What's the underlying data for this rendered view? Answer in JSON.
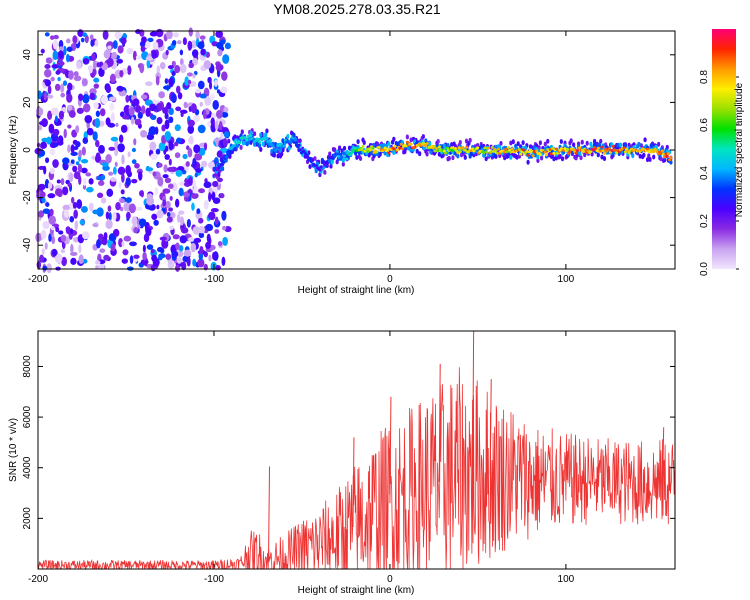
{
  "title": "YM08.2025.278.03.35.R21",
  "chart_data": [
    {
      "type": "heatmap",
      "name": "spectrogram",
      "xlabel": "Height of straight line (km)",
      "ylabel": "Frequency (Hz)",
      "xlim": [
        -200,
        162
      ],
      "ylim": [
        -50,
        50
      ],
      "xticks": [
        -200,
        -100,
        0,
        100
      ],
      "yticks": [
        40,
        20,
        0,
        -20,
        -40
      ],
      "colorbar": {
        "label": "Normalized spectral amplitude",
        "range": [
          0,
          1
        ],
        "ticks": [
          "0.0",
          "0.2",
          "0.4",
          "0.6",
          "0.8"
        ],
        "tick_values": [
          0.0,
          0.2,
          0.4,
          0.6,
          0.8
        ],
        "colors": [
          "#f2e6ff",
          "#c9a3f0",
          "#8a2be2",
          "#4b00ff",
          "#0033ff",
          "#00b7ff",
          "#00e5c0",
          "#00e000",
          "#9be000",
          "#ffee00",
          "#ff9900",
          "#ff2200",
          "#ff0077"
        ]
      },
      "noise_region_x": [
        -200,
        -92
      ],
      "trace": {
        "x": [
          -100,
          -95,
          -90,
          -85,
          -80,
          -75,
          -70,
          -65,
          -60,
          -55,
          -50,
          -45,
          -40,
          -35,
          -30,
          -25,
          -20,
          -10,
          0,
          10,
          20,
          30,
          40,
          60,
          80,
          100,
          120,
          140,
          150,
          160
        ],
        "y": [
          -10,
          -6,
          2,
          4,
          5,
          4,
          5,
          0,
          3,
          4,
          0,
          -4,
          -8,
          -4,
          -2,
          -3,
          0,
          0,
          0,
          2,
          2,
          0,
          0,
          0,
          -1,
          0,
          0,
          0,
          0,
          -3
        ],
        "amplitude": [
          0.2,
          0.3,
          0.45,
          0.5,
          0.45,
          0.45,
          0.5,
          0.4,
          0.45,
          0.4,
          0.3,
          0.3,
          0.25,
          0.3,
          0.35,
          0.5,
          0.6,
          0.75,
          0.85,
          0.9,
          0.8,
          0.7,
          0.75,
          0.8,
          0.85,
          0.85,
          0.9,
          0.8,
          0.85,
          0.9
        ]
      }
    },
    {
      "type": "line",
      "name": "snr",
      "xlabel": "Height of straight line (km)",
      "ylabel": "SNR (10 * v/v)",
      "xlim": [
        -200,
        162
      ],
      "ylim": [
        0,
        9400
      ],
      "xticks": [
        -200,
        -100,
        0,
        100
      ],
      "yticks": [
        2000,
        4000,
        6000,
        8000
      ],
      "color": "#ee3333",
      "envelope": {
        "x": [
          -200,
          -100,
          -85,
          -80,
          -75,
          -70,
          -60,
          -50,
          -40,
          -30,
          -20,
          -10,
          0,
          10,
          20,
          30,
          40,
          50,
          60,
          70,
          80,
          100,
          120,
          140,
          160
        ],
        "base": [
          150,
          150,
          200,
          600,
          600,
          300,
          500,
          800,
          1000,
          1300,
          1700,
          2200,
          2600,
          2900,
          3200,
          3500,
          3800,
          3800,
          3700,
          3700,
          3500,
          3500,
          3500,
          3400,
          3400
        ],
        "spread": [
          200,
          200,
          300,
          900,
          1000,
          600,
          900,
          1200,
          1500,
          1900,
          2500,
          3000,
          3300,
          3500,
          3800,
          4000,
          4200,
          3800,
          3300,
          2800,
          2300,
          1900,
          1700,
          1700,
          1800
        ]
      },
      "spikes": [
        {
          "x": -69,
          "y": 4050
        },
        {
          "x": -21,
          "y": 5200
        },
        {
          "x": 0,
          "y": 6800
        },
        {
          "x": 28,
          "y": 8100
        },
        {
          "x": 47,
          "y": 9400
        },
        {
          "x": 57,
          "y": 7500
        },
        {
          "x": 155,
          "y": 5600
        }
      ]
    }
  ]
}
